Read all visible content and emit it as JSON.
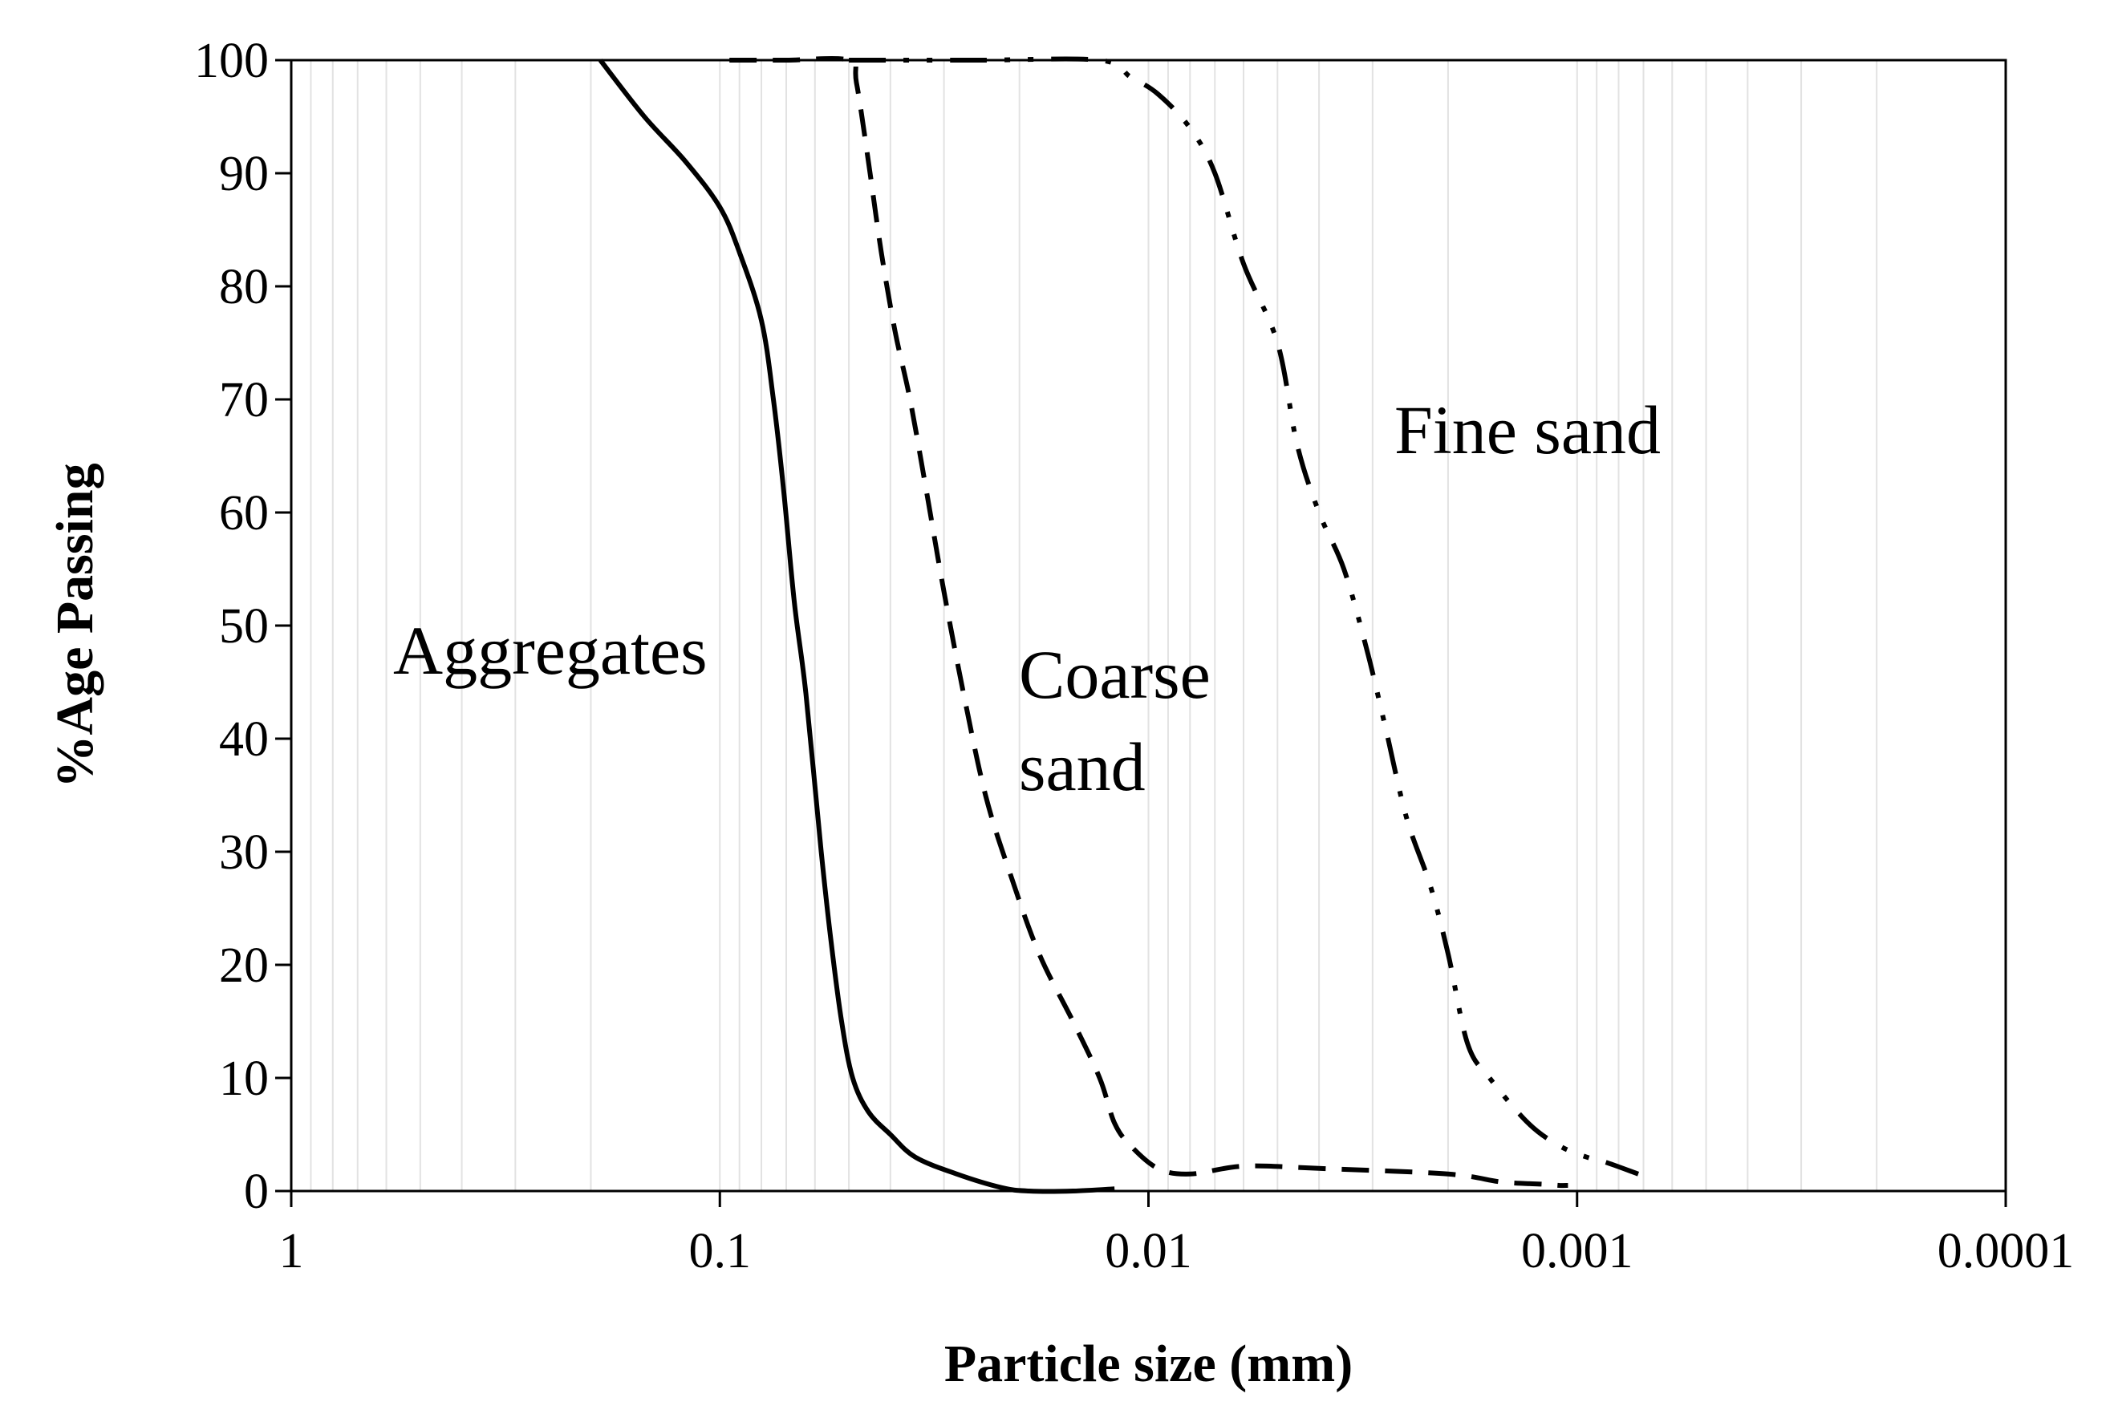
{
  "chart_data": {
    "type": "line",
    "xlabel": "Particle size (mm)",
    "ylabel": "%Age Passing",
    "x_scale": "log",
    "x_reversed": true,
    "xlim": [
      1,
      0.0001
    ],
    "ylim": [
      0,
      100
    ],
    "x_ticks": [
      "1",
      "0.1",
      "0.01",
      "0.001",
      "0.0001"
    ],
    "y_ticks": [
      "0",
      "10",
      "20",
      "30",
      "40",
      "50",
      "60",
      "70",
      "80",
      "90",
      "100"
    ],
    "grid": "vertical minor lines",
    "line_color": "#000000",
    "series": [
      {
        "name": "Aggregates",
        "style": "solid",
        "x": [
          0.19,
          0.15,
          0.12,
          0.1,
          0.09,
          0.08,
          0.075,
          0.071,
          0.067,
          0.063,
          0.058,
          0.055,
          0.052,
          0.049,
          0.045,
          0.04,
          0.035,
          0.028,
          0.022,
          0.019,
          0.015,
          0.012
        ],
        "y": [
          100,
          95,
          91,
          87,
          83,
          77,
          70,
          62,
          52,
          44,
          30,
          22,
          15,
          10,
          7,
          5,
          3,
          1.5,
          0.3,
          0,
          0,
          0.2
        ]
      },
      {
        "name": "Coarse sand",
        "style": "dashed",
        "x": [
          0.095,
          0.07,
          0.05,
          0.048,
          0.045,
          0.042,
          0.039,
          0.036,
          0.033,
          0.03,
          0.027,
          0.024,
          0.021,
          0.018,
          0.015,
          0.013,
          0.012,
          0.011,
          0.0095,
          0.008,
          0.006,
          0.004,
          0.002,
          0.0015,
          0.0012,
          0.0011,
          0.00105
        ],
        "y": [
          100,
          100,
          100,
          98,
          91,
          83,
          76,
          70,
          62,
          53,
          44,
          35,
          28,
          21,
          15,
          10,
          6,
          4,
          2,
          1.5,
          2.2,
          2,
          1.5,
          0.8,
          0.6,
          0.5,
          0.5
        ]
      },
      {
        "name": "Fine sand",
        "style": "dash-dot-dot",
        "x": [
          0.05,
          0.025,
          0.013,
          0.011,
          0.0095,
          0.008,
          0.007,
          0.006,
          0.005,
          0.0045,
          0.004,
          0.0035,
          0.0031,
          0.0028,
          0.0025,
          0.0022,
          0.002,
          0.0018,
          0.0016,
          0.0013,
          0.0011,
          0.00095,
          0.00085,
          0.00072
        ],
        "y": [
          100,
          100,
          100,
          98.5,
          97,
          94,
          90,
          82,
          75,
          66,
          60,
          55,
          48,
          41,
          33,
          27,
          21,
          13,
          10,
          6,
          4,
          3,
          2.5,
          1.5
        ]
      }
    ],
    "annotations": [
      {
        "text": "Aggregates",
        "series": "Aggregates"
      },
      {
        "text": "Coarse",
        "series": "Coarse sand"
      },
      {
        "text": "sand",
        "series": "Coarse sand"
      },
      {
        "text": "Fine sand",
        "series": "Fine sand"
      }
    ]
  }
}
